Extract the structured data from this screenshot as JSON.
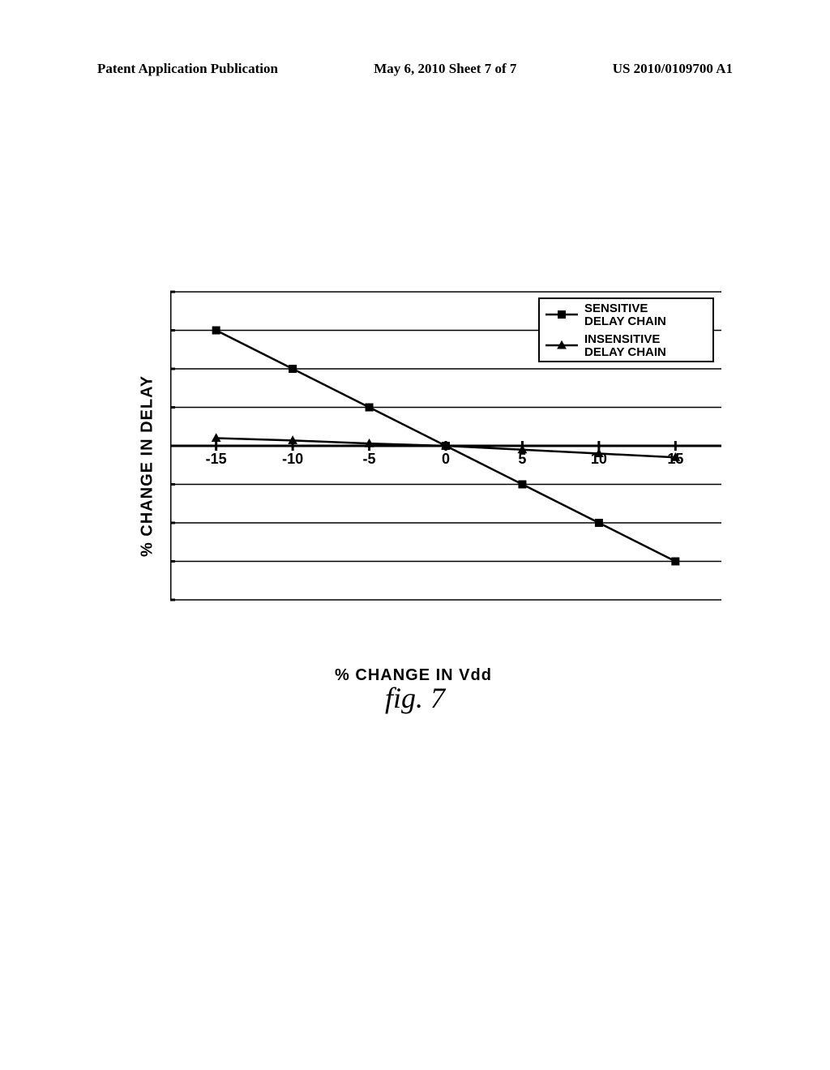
{
  "header": {
    "left": "Patent Application Publication",
    "center": "May 6, 2010  Sheet 7 of 7",
    "right": "US 2010/0109700 A1"
  },
  "chart": {
    "type": "line",
    "xlabel": "% CHANGE IN Vdd",
    "ylabel": "% CHANGE IN DELAY",
    "xlim": [
      -18,
      18
    ],
    "ylim": [
      -20,
      20
    ],
    "ytick_step": 5,
    "xtick_step": 5,
    "background_color": "#ffffff",
    "axis_color": "#000000",
    "grid_color": "#000000",
    "axis_width": 3,
    "grid_width": 1.5,
    "line_width": 2.5,
    "marker_size": 10,
    "label_fontsize": 20,
    "tick_fontsize": 18,
    "legend": {
      "position": "top-right",
      "border_color": "#000000",
      "fontsize": 15,
      "items": [
        {
          "label": "SENSITIVE DELAY CHAIN",
          "marker": "square"
        },
        {
          "label": "INSENSITIVE DELAY CHAIN",
          "marker": "triangle"
        }
      ]
    },
    "series": [
      {
        "name": "sensitive",
        "marker": "square",
        "color": "#000000",
        "x": [
          -15,
          -10,
          -5,
          0,
          5,
          10,
          15
        ],
        "y": [
          15,
          10,
          5,
          0,
          -5,
          -10,
          -15
        ]
      },
      {
        "name": "insensitive",
        "marker": "triangle",
        "color": "#000000",
        "x": [
          -15,
          -10,
          -5,
          0,
          5,
          10,
          15
        ],
        "y": [
          1,
          0.7,
          0.3,
          0,
          -0.5,
          -1,
          -1.5
        ]
      }
    ]
  },
  "caption": "fig.  7"
}
